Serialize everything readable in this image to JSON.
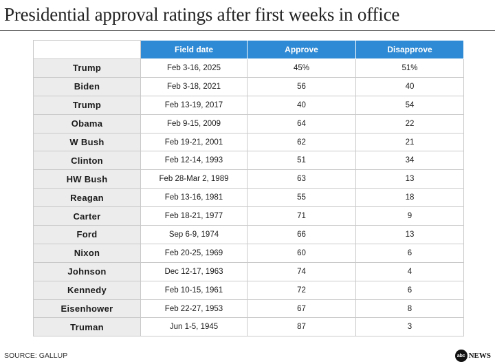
{
  "header": {
    "title": "Presidential approval ratings after first weeks in office"
  },
  "chart_data": {
    "type": "table",
    "columns": [
      "",
      "Field date",
      "Approve",
      "Disapprove"
    ],
    "rows": [
      {
        "president": "Trump",
        "field_date": "Feb 3-16, 2025",
        "approve": "45%",
        "disapprove": "51%"
      },
      {
        "president": "Biden",
        "field_date": "Feb 3-18, 2021",
        "approve": "56",
        "disapprove": "40"
      },
      {
        "president": "Trump",
        "field_date": "Feb 13-19, 2017",
        "approve": "40",
        "disapprove": "54"
      },
      {
        "president": "Obama",
        "field_date": "Feb 9-15, 2009",
        "approve": "64",
        "disapprove": "22"
      },
      {
        "president": "W Bush",
        "field_date": "Feb 19-21, 2001",
        "approve": "62",
        "disapprove": "21"
      },
      {
        "president": "Clinton",
        "field_date": "Feb 12-14, 1993",
        "approve": "51",
        "disapprove": "34"
      },
      {
        "president": "HW Bush",
        "field_date": "Feb 28-Mar 2, 1989",
        "approve": "63",
        "disapprove": "13"
      },
      {
        "president": "Reagan",
        "field_date": "Feb 13-16, 1981",
        "approve": "55",
        "disapprove": "18"
      },
      {
        "president": "Carter",
        "field_date": "Feb 18-21, 1977",
        "approve": "71",
        "disapprove": "9"
      },
      {
        "president": "Ford",
        "field_date": "Sep 6-9, 1974",
        "approve": "66",
        "disapprove": "13"
      },
      {
        "president": "Nixon",
        "field_date": "Feb 20-25, 1969",
        "approve": "60",
        "disapprove": "6"
      },
      {
        "president": "Johnson",
        "field_date": "Dec 12-17, 1963",
        "approve": "74",
        "disapprove": "4"
      },
      {
        "president": "Kennedy",
        "field_date": "Feb 10-15, 1961",
        "approve": "72",
        "disapprove": "6"
      },
      {
        "president": "Eisenhower",
        "field_date": "Feb 22-27, 1953",
        "approve": "67",
        "disapprove": "8"
      },
      {
        "president": "Truman",
        "field_date": "Jun 1-5, 1945",
        "approve": "87",
        "disapprove": "3"
      }
    ]
  },
  "footer": {
    "source": "SOURCE: GALLUP",
    "logo_mark": "abc",
    "logo_text": "NEWS"
  },
  "colors": {
    "header_blue": "#2e8ad4",
    "name_cell_gray": "#ececec"
  },
  "icons": {
    "logo": "abc-news-logo-icon"
  }
}
